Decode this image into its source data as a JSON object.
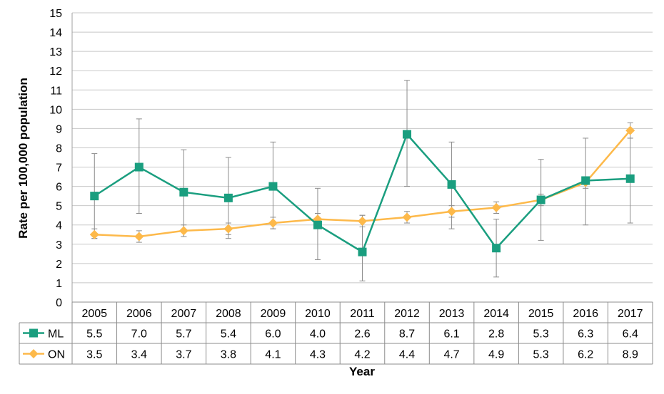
{
  "chart_data": {
    "type": "line",
    "title": "",
    "xlabel": "Year",
    "ylabel": "Rate per 100,000 population",
    "ylim": [
      0,
      15
    ],
    "y_ticks": [
      "0",
      "1",
      "2",
      "3",
      "4",
      "5",
      "6",
      "7",
      "8",
      "9",
      "10",
      "11",
      "12",
      "13",
      "14",
      "15"
    ],
    "grid": true,
    "legend": "data-table-left",
    "categories": [
      "2005",
      "2006",
      "2007",
      "2008",
      "2009",
      "2010",
      "2011",
      "2012",
      "2013",
      "2014",
      "2015",
      "2016",
      "2017"
    ],
    "series": [
      {
        "name": "ML",
        "color": "#1A9E7F",
        "marker": "square",
        "values": [
          5.5,
          7.0,
          5.7,
          5.4,
          6.0,
          4.0,
          2.6,
          8.7,
          6.1,
          2.8,
          5.3,
          6.3,
          6.4
        ],
        "labels": [
          "5.5",
          "7.0",
          "5.7",
          "5.4",
          "6.0",
          "4.0",
          "2.6",
          "8.7",
          "6.1",
          "2.8",
          "5.3",
          "6.3",
          "6.4"
        ],
        "ci_low": [
          3.3,
          4.6,
          3.4,
          3.3,
          3.8,
          2.2,
          1.1,
          6.0,
          3.8,
          1.3,
          3.2,
          4.0,
          4.1
        ],
        "ci_high": [
          7.7,
          9.5,
          7.9,
          7.5,
          8.3,
          5.9,
          4.5,
          11.5,
          8.3,
          4.3,
          7.4,
          8.5,
          8.5
        ]
      },
      {
        "name": "ON",
        "color": "#FDB94A",
        "marker": "diamond",
        "values": [
          3.5,
          3.4,
          3.7,
          3.8,
          4.1,
          4.3,
          4.2,
          4.4,
          4.7,
          4.9,
          5.3,
          6.2,
          8.9
        ],
        "labels": [
          "3.5",
          "3.4",
          "3.7",
          "3.8",
          "4.1",
          "4.3",
          "4.2",
          "4.4",
          "4.7",
          "4.9",
          "5.3",
          "6.2",
          "8.9"
        ],
        "ci_low": [
          3.3,
          3.1,
          3.4,
          3.5,
          3.8,
          4.0,
          3.9,
          4.1,
          4.4,
          4.6,
          5.0,
          5.9,
          8.5
        ],
        "ci_high": [
          3.8,
          3.7,
          4.0,
          4.1,
          4.4,
          4.6,
          4.5,
          4.7,
          5.0,
          5.2,
          5.6,
          6.5,
          9.3
        ]
      }
    ]
  }
}
